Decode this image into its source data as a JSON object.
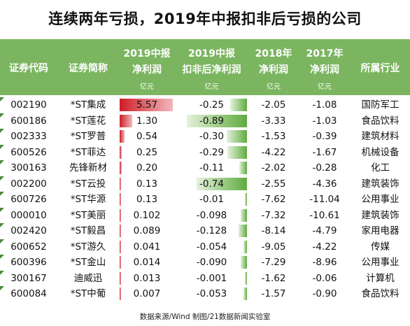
{
  "title": "连续两年亏损，2019年中报扣非后亏损的公司",
  "header": {
    "code": "证券代码",
    "name": "证券简称",
    "net2019_l1": "2019中报",
    "net2019_l2": "净利润",
    "net2019_unit": "亿元",
    "ded2019_l1": "2019中报",
    "ded2019_l2": "扣非后净利润",
    "ded2019_unit": "亿元",
    "net2018_l1": "2018年",
    "net2018_l2": "净利润",
    "net2018_unit": "亿元",
    "net2017_l1": "2017年",
    "net2017_l2": "净利润",
    "net2017_unit": "亿元",
    "industry": "所属行业"
  },
  "colors": {
    "header_bg": "#7bb560",
    "red_bar": "#cf1d27",
    "green_bar": "#5fab3e"
  },
  "rows": [
    {
      "code": "002190",
      "name": "*ST集成",
      "net2019": "5.57",
      "ded2019": "-0.25",
      "net2018": "-2.05",
      "net2017": "-1.08",
      "industry": "国防军工"
    },
    {
      "code": "600186",
      "name": "*ST莲花",
      "net2019": "1.30",
      "ded2019": "-0.89",
      "net2018": "-3.33",
      "net2017": "-1.03",
      "industry": "食品饮料"
    },
    {
      "code": "002333",
      "name": "*ST罗普",
      "net2019": "0.54",
      "ded2019": "-0.30",
      "net2018": "-1.53",
      "net2017": "-0.39",
      "industry": "建筑材料"
    },
    {
      "code": "600526",
      "name": "*ST菲达",
      "net2019": "0.25",
      "ded2019": "-0.29",
      "net2018": "-4.22",
      "net2017": "-1.67",
      "industry": "机械设备"
    },
    {
      "code": "300163",
      "name": "先锋新材",
      "net2019": "0.20",
      "ded2019": "-0.11",
      "net2018": "-2.02",
      "net2017": "-0.28",
      "industry": "化工"
    },
    {
      "code": "002200",
      "name": "*ST云投",
      "net2019": "0.13",
      "ded2019": "-0.74",
      "net2018": "-2.55",
      "net2017": "-4.36",
      "industry": "建筑装饰"
    },
    {
      "code": "600726",
      "name": "*ST华源",
      "net2019": "0.13",
      "ded2019": "-0.01",
      "net2018": "-7.62",
      "net2017": "-11.04",
      "industry": "公用事业"
    },
    {
      "code": "000010",
      "name": "*ST美丽",
      "net2019": "0.102",
      "ded2019": "-0.098",
      "net2018": "-7.32",
      "net2017": "-10.61",
      "industry": "建筑装饰"
    },
    {
      "code": "002420",
      "name": "*ST毅昌",
      "net2019": "0.089",
      "ded2019": "-0.128",
      "net2018": "-8.14",
      "net2017": "-4.79",
      "industry": "家用电器"
    },
    {
      "code": "600652",
      "name": "*ST游久",
      "net2019": "0.041",
      "ded2019": "-0.054",
      "net2018": "-9.05",
      "net2017": "-4.22",
      "industry": "传媒"
    },
    {
      "code": "600396",
      "name": "*ST金山",
      "net2019": "0.014",
      "ded2019": "-0.090",
      "net2018": "-7.29",
      "net2017": "-8.96",
      "industry": "公用事业"
    },
    {
      "code": "300167",
      "name": "迪威迅",
      "net2019": "0.013",
      "ded2019": "-0.001",
      "net2018": "-1.62",
      "net2017": "-0.06",
      "industry": "计算机"
    },
    {
      "code": "600084",
      "name": "*ST中葡",
      "net2019": "0.007",
      "ded2019": "-0.053",
      "net2018": "-1.57",
      "net2017": "-0.90",
      "industry": "食品饮料"
    }
  ],
  "footer": "数据来源/Wind  制图/21数据新闻实验室"
}
